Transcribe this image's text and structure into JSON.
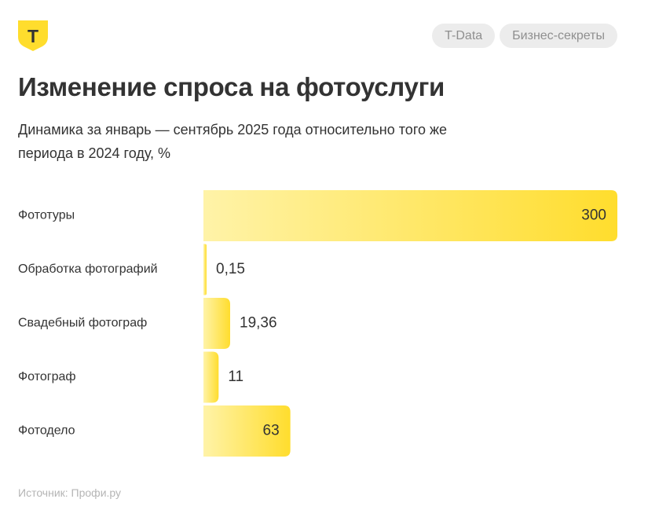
{
  "header": {
    "logo_icon": "tbank-shield-logo",
    "logo_letter": "Т",
    "logo_color": "#FFDD2D",
    "tags": [
      "T-Data",
      "Бизнес-секреты"
    ]
  },
  "chart_data": {
    "type": "bar",
    "orientation": "horizontal",
    "title": "Изменение спроса на фотоуслуги",
    "subtitle": "Динамика за январь — сентябрь 2025 года относительно того же периода в 2024 году, %",
    "categories": [
      "Фототуры",
      "Обработка фотографий",
      "Свадебный фотограф",
      "Фотограф",
      "Фотодело"
    ],
    "values": [
      300,
      0.15,
      19.36,
      11,
      63
    ],
    "value_labels": [
      "300",
      "0,15",
      "19,36",
      "11",
      "63"
    ],
    "xlim": [
      0,
      300
    ],
    "grid": false,
    "bar_color_start": "#FFF3A8",
    "bar_color_end": "#FFDD2D",
    "source": "Источник: Профи.ру"
  }
}
